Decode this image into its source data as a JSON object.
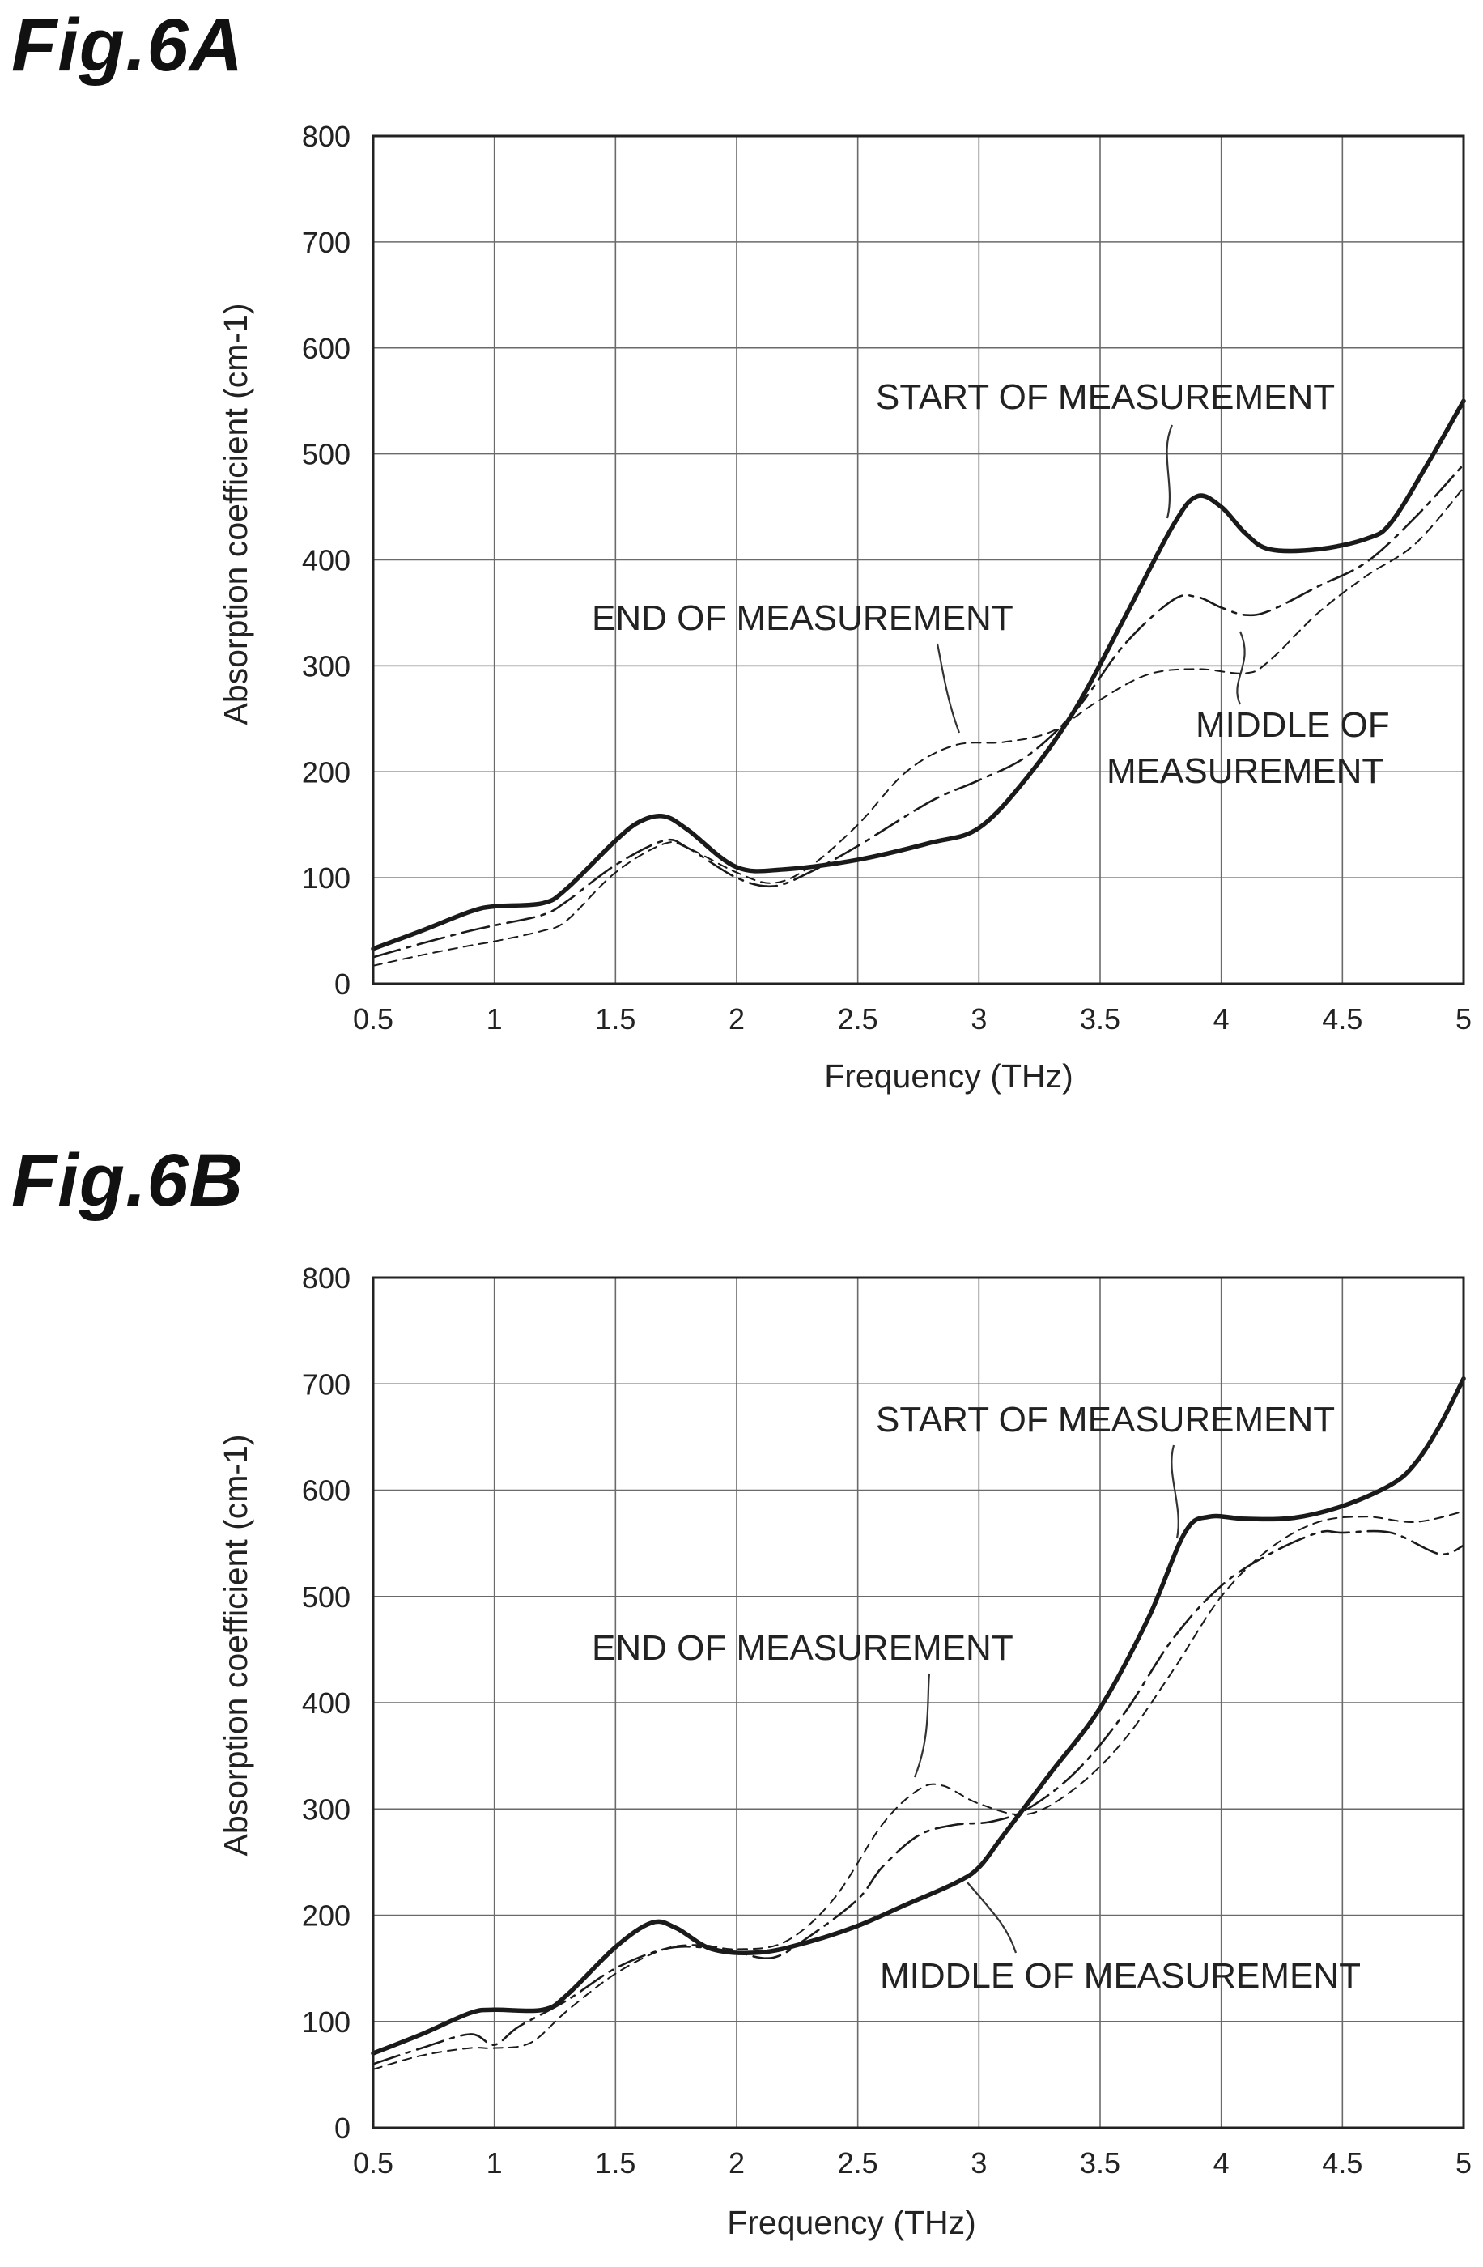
{
  "figures": [
    {
      "id": "A",
      "title": "Fig.6A",
      "annotations": {
        "start": "START OF MEASUREMENT",
        "end": "END OF MEASUREMENT",
        "middle_line1": "MIDDLE OF",
        "middle_line2": "MEASUREMENT"
      }
    },
    {
      "id": "B",
      "title": "Fig.6B",
      "annotations": {
        "start": "START OF MEASUREMENT",
        "end": "END OF MEASUREMENT",
        "middle": "MIDDLE OF MEASUREMENT"
      }
    }
  ],
  "chart_data": [
    {
      "type": "line",
      "title": "Fig.6A",
      "xlabel": "Frequency (THz)",
      "ylabel": "Absorption coefficient (cm-1)",
      "xlim": [
        0.5,
        5
      ],
      "ylim": [
        0,
        800
      ],
      "xticks": [
        "0.5",
        "1",
        "1.5",
        "2",
        "2.5",
        "3",
        "3.5",
        "4",
        "4.5",
        "5"
      ],
      "yticks": [
        "0",
        "100",
        "200",
        "300",
        "400",
        "500",
        "600",
        "700",
        "800"
      ],
      "grid": true,
      "series": [
        {
          "name": "START OF MEASUREMENT",
          "style": "solid-thick",
          "x": [
            0.5,
            0.7,
            0.9,
            1.0,
            1.2,
            1.3,
            1.5,
            1.6,
            1.7,
            1.8,
            2.0,
            2.2,
            2.5,
            2.8,
            3.0,
            3.2,
            3.4,
            3.6,
            3.8,
            3.9,
            4.0,
            4.1,
            4.2,
            4.4,
            4.6,
            4.7,
            4.85,
            5.0
          ],
          "y": [
            33,
            50,
            68,
            73,
            76,
            90,
            135,
            153,
            158,
            145,
            110,
            108,
            117,
            133,
            147,
            195,
            260,
            345,
            432,
            460,
            450,
            425,
            410,
            410,
            420,
            435,
            490,
            550
          ]
        },
        {
          "name": "MIDDLE OF MEASUREMENT",
          "style": "dash-dot",
          "x": [
            0.5,
            0.7,
            0.9,
            1.0,
            1.2,
            1.3,
            1.5,
            1.7,
            1.8,
            2.0,
            2.15,
            2.3,
            2.5,
            2.8,
            3.0,
            3.2,
            3.4,
            3.6,
            3.8,
            3.9,
            4.0,
            4.1,
            4.2,
            4.4,
            4.6,
            4.8,
            5.0
          ],
          "y": [
            25,
            38,
            50,
            55,
            65,
            78,
            112,
            135,
            128,
            100,
            92,
            105,
            130,
            172,
            192,
            215,
            258,
            320,
            362,
            365,
            355,
            348,
            352,
            375,
            398,
            440,
            490
          ]
        },
        {
          "name": "END OF MEASUREMENT",
          "style": "dashed",
          "x": [
            0.5,
            0.7,
            0.9,
            1.0,
            1.2,
            1.3,
            1.5,
            1.7,
            1.8,
            2.0,
            2.15,
            2.3,
            2.5,
            2.7,
            2.9,
            3.1,
            3.3,
            3.5,
            3.7,
            3.9,
            4.1,
            4.2,
            4.4,
            4.6,
            4.8,
            5.0
          ],
          "y": [
            17,
            27,
            36,
            40,
            50,
            60,
            105,
            132,
            128,
            105,
            95,
            110,
            150,
            200,
            225,
            228,
            238,
            268,
            292,
            297,
            293,
            305,
            350,
            385,
            415,
            468
          ]
        }
      ]
    },
    {
      "type": "line",
      "title": "Fig.6B",
      "xlabel": "Frequency (THz)",
      "ylabel": "Absorption coefficient (cm-1)",
      "xlim": [
        0.5,
        5
      ],
      "ylim": [
        0,
        800
      ],
      "xticks": [
        "0.5",
        "1",
        "1.5",
        "2",
        "2.5",
        "3",
        "3.5",
        "4",
        "4.5",
        "5"
      ],
      "yticks": [
        "0",
        "100",
        "200",
        "300",
        "400",
        "500",
        "600",
        "700",
        "800"
      ],
      "grid": true,
      "series": [
        {
          "name": "START OF MEASUREMENT",
          "style": "solid-thick",
          "x": [
            0.5,
            0.7,
            0.9,
            1.0,
            1.2,
            1.3,
            1.5,
            1.65,
            1.75,
            1.9,
            2.1,
            2.3,
            2.5,
            2.7,
            2.9,
            3.0,
            3.1,
            3.3,
            3.5,
            3.7,
            3.85,
            3.95,
            4.1,
            4.3,
            4.5,
            4.7,
            4.8,
            4.9,
            5.0
          ],
          "y": [
            70,
            88,
            108,
            111,
            111,
            125,
            170,
            193,
            188,
            168,
            165,
            175,
            190,
            210,
            230,
            245,
            275,
            335,
            395,
            480,
            560,
            575,
            573,
            574,
            585,
            605,
            625,
            660,
            705
          ]
        },
        {
          "name": "MIDDLE OF MEASUREMENT",
          "style": "dash-dot",
          "x": [
            0.5,
            0.7,
            0.9,
            1.0,
            1.1,
            1.3,
            1.5,
            1.7,
            1.85,
            2.0,
            2.15,
            2.3,
            2.5,
            2.6,
            2.75,
            2.9,
            3.05,
            3.2,
            3.4,
            3.6,
            3.8,
            4.0,
            4.2,
            4.4,
            4.5,
            4.7,
            4.9,
            5.0
          ],
          "y": [
            60,
            75,
            88,
            78,
            95,
            120,
            150,
            168,
            170,
            165,
            160,
            180,
            215,
            245,
            275,
            285,
            288,
            300,
            335,
            390,
            460,
            510,
            540,
            560,
            560,
            560,
            540,
            548
          ]
        },
        {
          "name": "END OF MEASUREMENT",
          "style": "dashed",
          "x": [
            0.5,
            0.7,
            0.9,
            1.0,
            1.15,
            1.3,
            1.5,
            1.7,
            1.85,
            2.0,
            2.2,
            2.4,
            2.6,
            2.75,
            2.85,
            3.0,
            3.2,
            3.4,
            3.6,
            3.8,
            4.0,
            4.2,
            4.4,
            4.6,
            4.8,
            5.0
          ],
          "y": [
            55,
            68,
            75,
            75,
            80,
            110,
            145,
            168,
            172,
            168,
            175,
            215,
            285,
            318,
            322,
            305,
            295,
            320,
            365,
            430,
            500,
            545,
            570,
            575,
            570,
            580
          ]
        }
      ]
    }
  ]
}
